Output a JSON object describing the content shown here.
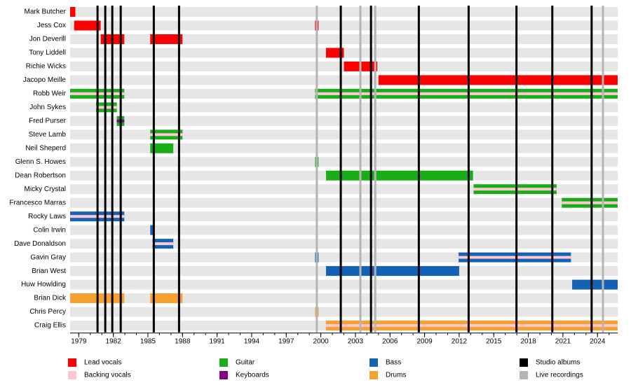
{
  "chart_data": {
    "type": "timeline",
    "xlim": [
      1978.25,
      2025.75
    ],
    "xticks": [
      1979,
      1982,
      1985,
      1988,
      1991,
      1994,
      1997,
      2000,
      2003,
      2006,
      2009,
      2012,
      2015,
      2018,
      2021,
      2024
    ],
    "roles": [
      {
        "name": "Lead vocals",
        "color": "#ff0000"
      },
      {
        "name": "Backing vocals",
        "color": "#ffc8d2"
      },
      {
        "name": "Guitar",
        "color": "#18ae18"
      },
      {
        "name": "Keyboards",
        "color": "#800080"
      },
      {
        "name": "Bass",
        "color": "#1462b4"
      },
      {
        "name": "Drums",
        "color": "#f8a030"
      }
    ],
    "events": [
      {
        "name": "Studio albums",
        "color": "#000000",
        "years": [
          1980.63,
          1981.3,
          1981.91,
          1982.64,
          1985.51,
          1987.7,
          2001.73,
          2004.35,
          2008.5,
          2012.82,
          2016.97,
          2020.08,
          2023.49
        ]
      },
      {
        "name": "Live recordings",
        "color": "#b4b4b4",
        "years": [
          1999.65,
          2003.43,
          2004.72,
          2024.47
        ]
      }
    ],
    "members": [
      {
        "name": "Mark Butcher",
        "periods": [
          {
            "start": 1978.25,
            "end": 1978.7,
            "role": "Lead vocals"
          }
        ]
      },
      {
        "name": "Jess Cox",
        "periods": [
          {
            "start": 1978.6,
            "end": 1980.9,
            "role": "Lead vocals"
          },
          {
            "start": 1999.5,
            "end": 1999.8,
            "role": "Lead vocals"
          }
        ]
      },
      {
        "name": "Jon Deverill",
        "periods": [
          {
            "start": 1980.9,
            "end": 1982.95,
            "role": "Lead vocals"
          },
          {
            "start": 1985.2,
            "end": 1988.0,
            "role": "Lead vocals"
          }
        ]
      },
      {
        "name": "Tony Liddell",
        "periods": [
          {
            "start": 2000.45,
            "end": 2002.0,
            "role": "Lead vocals"
          }
        ]
      },
      {
        "name": "Richie Wicks",
        "periods": [
          {
            "start": 2002.0,
            "end": 2004.9,
            "role": "Lead vocals"
          }
        ]
      },
      {
        "name": "Jacopo Meille",
        "periods": [
          {
            "start": 2005.0,
            "end": 2025.75,
            "role": "Lead vocals"
          }
        ]
      },
      {
        "name": "Robb Weir",
        "periods": [
          {
            "start": 1978.25,
            "end": 1982.95,
            "role": "Guitar",
            "secondary": "Backing vocals"
          },
          {
            "start": 1999.5,
            "end": 2025.75,
            "role": "Guitar",
            "secondary": "Backing vocals"
          }
        ]
      },
      {
        "name": "John Sykes",
        "periods": [
          {
            "start": 1980.5,
            "end": 1982.3,
            "role": "Guitar",
            "secondary": "Backing vocals"
          }
        ]
      },
      {
        "name": "Fred Purser",
        "periods": [
          {
            "start": 1982.3,
            "end": 1982.95,
            "role": "Guitar",
            "secondary": "Keyboards"
          }
        ]
      },
      {
        "name": "Steve Lamb",
        "periods": [
          {
            "start": 1985.2,
            "end": 1988.0,
            "role": "Guitar",
            "secondary": "Backing vocals"
          }
        ]
      },
      {
        "name": "Neil Sheperd",
        "periods": [
          {
            "start": 1985.2,
            "end": 1987.2,
            "role": "Guitar"
          }
        ]
      },
      {
        "name": "Glenn S. Howes",
        "periods": [
          {
            "start": 1999.5,
            "end": 1999.8,
            "role": "Guitar"
          }
        ]
      },
      {
        "name": "Dean Robertson",
        "periods": [
          {
            "start": 2000.45,
            "end": 2013.2,
            "role": "Guitar"
          }
        ]
      },
      {
        "name": "Micky Crystal",
        "periods": [
          {
            "start": 2013.25,
            "end": 2020.45,
            "role": "Guitar",
            "secondary": "Backing vocals"
          }
        ]
      },
      {
        "name": "Francesco Marras",
        "periods": [
          {
            "start": 2020.9,
            "end": 2025.75,
            "role": "Guitar",
            "secondary": "Backing vocals"
          }
        ]
      },
      {
        "name": "Rocky Laws",
        "periods": [
          {
            "start": 1978.25,
            "end": 1982.95,
            "role": "Bass",
            "secondary": "Backing vocals"
          }
        ]
      },
      {
        "name": "Colin Irwin",
        "periods": [
          {
            "start": 1985.2,
            "end": 1985.45,
            "role": "Bass"
          }
        ]
      },
      {
        "name": "Dave Donaldson",
        "periods": [
          {
            "start": 1985.4,
            "end": 1987.2,
            "role": "Bass",
            "secondary": "Backing vocals"
          }
        ]
      },
      {
        "name": "Gavin Gray",
        "periods": [
          {
            "start": 1999.5,
            "end": 1999.8,
            "role": "Bass"
          },
          {
            "start": 2011.95,
            "end": 2021.7,
            "role": "Bass",
            "secondary": "Backing vocals"
          }
        ]
      },
      {
        "name": "Brian West",
        "periods": [
          {
            "start": 2000.45,
            "end": 2012.0,
            "role": "Bass"
          }
        ]
      },
      {
        "name": "Huw Howlding",
        "periods": [
          {
            "start": 2021.8,
            "end": 2025.75,
            "role": "Bass"
          }
        ]
      },
      {
        "name": "Brian Dick",
        "periods": [
          {
            "start": 1978.25,
            "end": 1982.95,
            "role": "Drums"
          },
          {
            "start": 1985.2,
            "end": 1988.0,
            "role": "Drums"
          }
        ]
      },
      {
        "name": "Chris Percy",
        "periods": [
          {
            "start": 1999.5,
            "end": 1999.8,
            "role": "Drums"
          }
        ]
      },
      {
        "name": "Craig Ellis",
        "periods": [
          {
            "start": 2000.45,
            "end": 2025.75,
            "role": "Drums",
            "secondary": "Backing vocals"
          }
        ]
      }
    ]
  }
}
